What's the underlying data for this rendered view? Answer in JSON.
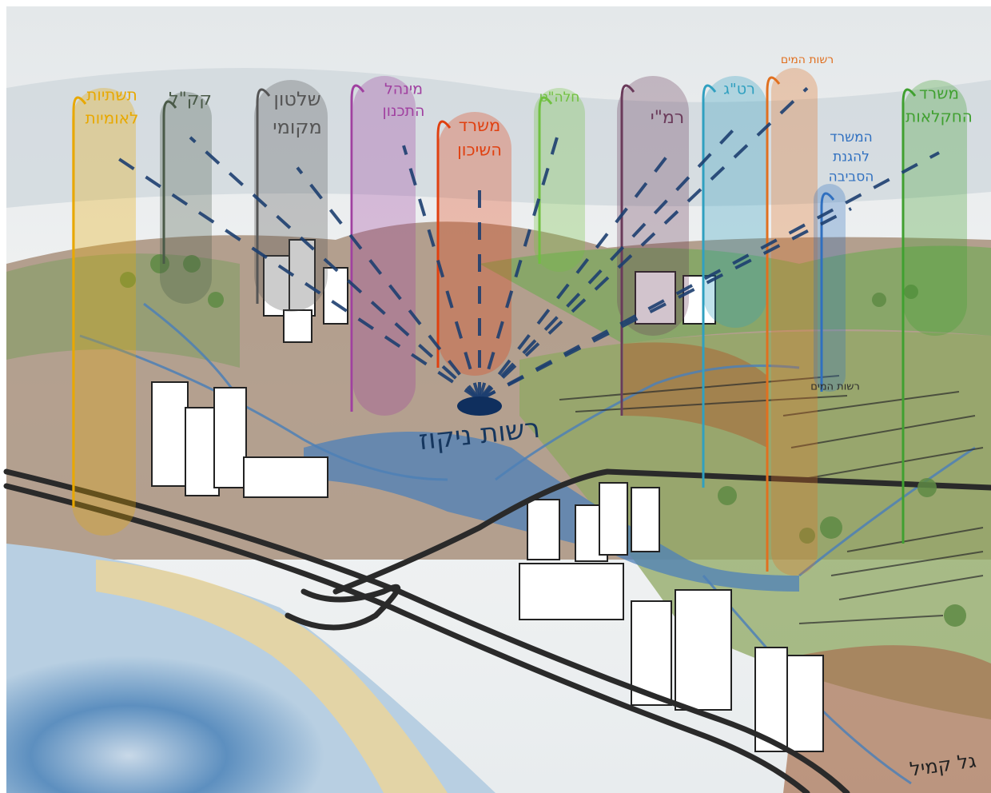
{
  "agencies": [
    {
      "lines": [
        "תשתיות",
        "לאומיות"
      ]
    },
    {
      "lines": [
        "קק\"ל"
      ]
    },
    {
      "lines": [
        "שלטון",
        "מקומי"
      ]
    },
    {
      "lines": [
        "מינהל",
        "התכנון"
      ]
    },
    {
      "lines": [
        "משרד",
        "השיכון"
      ]
    },
    {
      "lines": [
        "חלה\"ט"
      ]
    },
    {
      "lines": [
        "רמ\"י"
      ]
    },
    {
      "lines": [
        "רט\"ג"
      ]
    },
    {
      "lines": [
        "רשות המים"
      ]
    },
    {
      "lines": [
        "המשרד",
        "להגנת",
        "הסביבה"
      ]
    },
    {
      "lines": [
        "משרד",
        "החקלאות"
      ]
    }
  ],
  "center_label": "רשות ניקוז",
  "small_label": "רשות המים",
  "signature": "גל קמיל"
}
